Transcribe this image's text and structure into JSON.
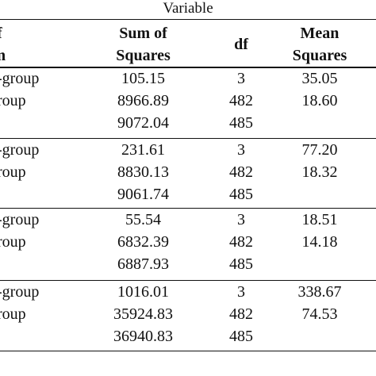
{
  "title": "Variable",
  "header": {
    "source_line1": "of",
    "source_line2": "on",
    "ss_line1": "Sum of",
    "ss_line2": "Squares",
    "df": "df",
    "ms_line1": "Mean",
    "ms_line2": "Squares"
  },
  "groups": [
    {
      "rows": [
        {
          "source": "n-group",
          "ss": "105.15",
          "df": "3",
          "ms": "35.05"
        },
        {
          "source": "group",
          "ss": "8966.89",
          "df": "482",
          "ms": "18.60"
        },
        {
          "source": "",
          "ss": "9072.04",
          "df": "485",
          "ms": ""
        }
      ]
    },
    {
      "rows": [
        {
          "source": "n-group",
          "ss": "231.61",
          "df": "3",
          "ms": "77.20"
        },
        {
          "source": "group",
          "ss": "8830.13",
          "df": "482",
          "ms": "18.32"
        },
        {
          "source": "",
          "ss": "9061.74",
          "df": "485",
          "ms": ""
        }
      ]
    },
    {
      "rows": [
        {
          "source": "n-group",
          "ss": "55.54",
          "df": "3",
          "ms": "18.51"
        },
        {
          "source": "group",
          "ss": "6832.39",
          "df": "482",
          "ms": "14.18"
        },
        {
          "source": "",
          "ss": "6887.93",
          "df": "485",
          "ms": ""
        }
      ]
    },
    {
      "rows": [
        {
          "source": "n-group",
          "ss": "1016.01",
          "df": "3",
          "ms": "338.67"
        },
        {
          "source": "group",
          "ss": "35924.83",
          "df": "482",
          "ms": "74.53"
        },
        {
          "source": "",
          "ss": "36940.83",
          "df": "485",
          "ms": ""
        }
      ]
    }
  ]
}
